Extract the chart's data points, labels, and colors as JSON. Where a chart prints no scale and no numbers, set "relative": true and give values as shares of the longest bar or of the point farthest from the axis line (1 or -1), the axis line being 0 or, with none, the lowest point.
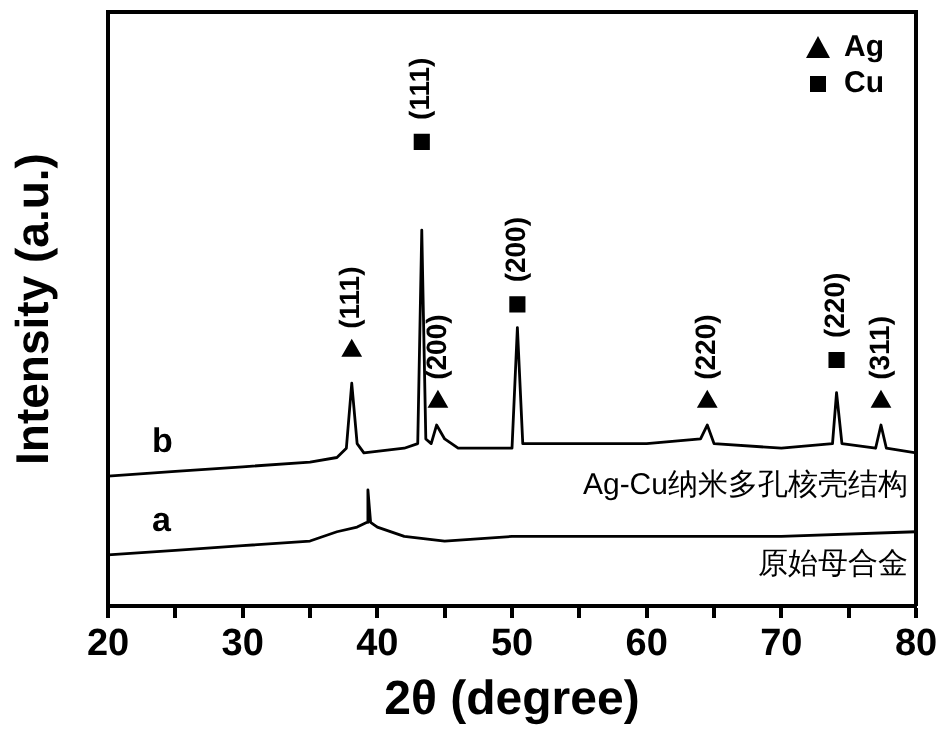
{
  "chart_data": {
    "type": "line",
    "relative": true,
    "xlabel": "2θ (degree)",
    "ylabel": "Intensity (a.u.)",
    "xlim": [
      20,
      80
    ],
    "xticks": [
      20,
      {
        "value": 25,
        "label": null
      },
      30,
      {
        "value": 35,
        "label": null
      },
      40,
      {
        "value": 45,
        "label": null
      },
      50,
      {
        "value": 55,
        "label": null
      },
      60,
      {
        "value": 65,
        "label": null
      },
      70,
      {
        "value": 75,
        "label": null
      },
      80
    ],
    "tick_labels": "x",
    "legend": "top right",
    "grid": false,
    "series": [
      {
        "name": "b",
        "color": "#000000",
        "x": [
          20,
          25,
          30,
          35,
          37,
          37.7,
          38.1,
          38.5,
          39,
          42,
          43,
          43.3,
          43.6,
          44,
          44.4,
          45,
          46,
          50,
          50.4,
          50.8,
          55,
          60,
          64,
          64.5,
          65,
          70,
          73.8,
          74.1,
          74.5,
          77,
          77.4,
          77.8,
          80
        ],
        "values": [
          0.28,
          0.29,
          0.3,
          0.31,
          0.32,
          0.34,
          0.48,
          0.35,
          0.33,
          0.34,
          0.35,
          0.81,
          0.36,
          0.35,
          0.39,
          0.36,
          0.34,
          0.34,
          0.6,
          0.35,
          0.35,
          0.35,
          0.36,
          0.39,
          0.35,
          0.34,
          0.35,
          0.46,
          0.35,
          0.34,
          0.39,
          0.34,
          0.33
        ]
      },
      {
        "name": "a",
        "color": "#000000",
        "x": [
          20,
          25,
          30,
          35,
          37,
          38.5,
          39.2,
          39.3,
          39.5,
          40,
          42,
          45,
          50,
          55,
          60,
          70,
          80
        ],
        "values": [
          0.11,
          0.12,
          0.13,
          0.14,
          0.16,
          0.17,
          0.18,
          0.25,
          0.18,
          0.17,
          0.15,
          0.14,
          0.15,
          0.15,
          0.15,
          0.15,
          0.16
        ]
      },
      {
        "name": "Ag",
        "type": "scatter",
        "marker": "triangle",
        "color": "#000000",
        "x": [
          38.1,
          44.5,
          64.5,
          77.4
        ],
        "values": [
          0.55,
          0.44,
          0.44,
          0.44
        ]
      },
      {
        "name": "Cu",
        "type": "scatter",
        "marker": "square",
        "color": "#000000",
        "x": [
          43.3,
          50.4,
          74.1
        ],
        "values": [
          1,
          0.65,
          0.53
        ]
      }
    ],
    "annotations": [
      {
        "text": "(111)",
        "x": 38.1,
        "y": 0.55
      },
      {
        "text": "(111)",
        "x": 43.3,
        "y": 1
      },
      {
        "text": "(200)",
        "x": 44.5,
        "y": 0.44
      },
      {
        "text": "(200)",
        "x": 50.4,
        "y": 0.65
      },
      {
        "text": "(220)",
        "x": 64.5,
        "y": 0.44
      },
      {
        "text": "(220)",
        "x": 74.1,
        "y": 0.53
      },
      {
        "text": "(311)",
        "x": 77.4,
        "y": 0.44
      },
      "Ag-Cu纳米多孔核壳结构",
      "原始母合金"
    ]
  }
}
